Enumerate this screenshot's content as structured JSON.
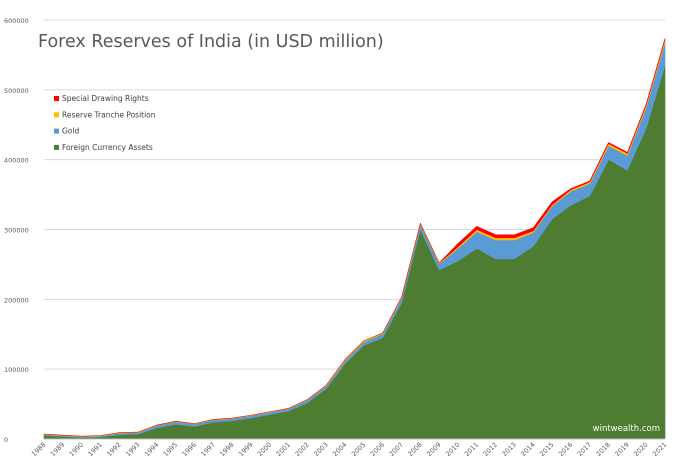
{
  "chart_data": {
    "type": "area",
    "stacked": true,
    "title": "Forex Reserves of India (in USD million)",
    "xlabel": "",
    "ylabel": "",
    "ylim": [
      0,
      600000
    ],
    "yticks": [
      "0",
      "100000",
      "200000",
      "300000",
      "400000",
      "500000",
      "600000"
    ],
    "categories": [
      "1988",
      "1989",
      "1990",
      "1991",
      "1992",
      "1993",
      "1994",
      "1995",
      "1996",
      "1997",
      "1998",
      "1999",
      "2000",
      "2001",
      "2002",
      "2003",
      "2004",
      "2005",
      "2006",
      "2007",
      "2008",
      "2009",
      "2010",
      "2011",
      "2012",
      "2013",
      "2014",
      "2015",
      "2016",
      "2017",
      "2018",
      "2019",
      "2020",
      "2021"
    ],
    "grid": "horizontal",
    "legend_position": "top-left",
    "series": [
      {
        "name": "Foreign Currency Assets",
        "color": "#4e7d32",
        "values": [
          5000,
          3500,
          2000,
          3000,
          6000,
          7000,
          16000,
          21000,
          18000,
          24000,
          26000,
          30000,
          35000,
          40000,
          52000,
          72000,
          108000,
          134000,
          145000,
          195000,
          300000,
          242000,
          255000,
          273000,
          258000,
          258000,
          276000,
          315000,
          335000,
          348000,
          400000,
          385000,
          445000,
          535000
        ]
      },
      {
        "name": "Gold",
        "color": "#5b9bd5",
        "values": [
          1500,
          1500,
          1500,
          1500,
          2500,
          2500,
          3500,
          4000,
          3500,
          3500,
          3500,
          3500,
          3500,
          3500,
          4000,
          4000,
          4500,
          5000,
          6000,
          7000,
          8000,
          9000,
          18000,
          24000,
          27000,
          27000,
          20000,
          19000,
          20000,
          18000,
          20000,
          21000,
          30000,
          33000
        ]
      },
      {
        "name": "Reserve Tranche Position",
        "color": "#ffc000",
        "values": [
          500,
          500,
          500,
          500,
          500,
          500,
          500,
          500,
          500,
          500,
          500,
          500,
          500,
          500,
          500,
          1000,
          1500,
          1500,
          1000,
          1000,
          1000,
          1000,
          2000,
          3000,
          3000,
          3000,
          2000,
          1500,
          2000,
          2000,
          3000,
          3000,
          3000,
          4000
        ]
      },
      {
        "name": "Special Drawing Rights",
        "color": "#ff0000",
        "values": [
          0,
          0,
          0,
          0,
          0,
          0,
          0,
          0,
          0,
          0,
          0,
          0,
          0,
          0,
          0,
          0,
          0,
          0,
          0,
          0,
          0,
          0,
          5000,
          4500,
          4500,
          4500,
          4500,
          4000,
          1500,
          1500,
          1500,
          1500,
          1500,
          1500
        ]
      }
    ],
    "annotations": [
      "wintwealth.com"
    ]
  }
}
